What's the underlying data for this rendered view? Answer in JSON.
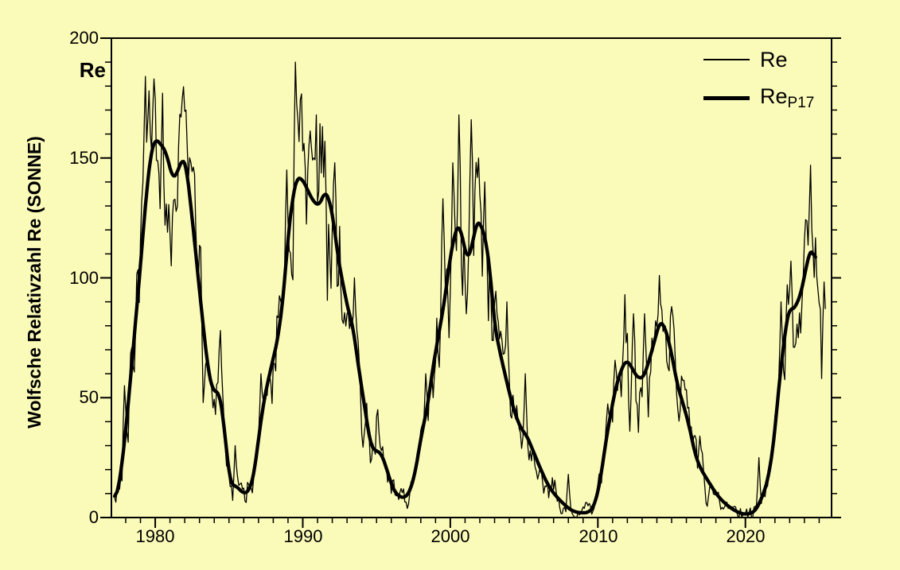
{
  "colors": {
    "background": "#FBFBB9",
    "foreground": "#000000"
  },
  "y_axis": {
    "title": "Wolfsche Relativzahl Re (SONNE)",
    "corner_label": "Re",
    "min": 0,
    "max": 200,
    "minor_step": 10,
    "major_ticks": [
      {
        "value": 0,
        "label": "0"
      },
      {
        "value": 50,
        "label": "50"
      },
      {
        "value": 100,
        "label": "100"
      },
      {
        "value": 150,
        "label": "150"
      },
      {
        "value": 200,
        "label": "200"
      }
    ]
  },
  "x_axis": {
    "min": 1977.03,
    "max": 2025.84,
    "minor_step": 1,
    "major_ticks": [
      {
        "value": 1980,
        "label": "1980"
      },
      {
        "value": 1990,
        "label": "1990"
      },
      {
        "value": 2000,
        "label": "2000"
      },
      {
        "value": 2010,
        "label": "2010"
      },
      {
        "value": 2020,
        "label": "2020"
      }
    ]
  },
  "legend": {
    "items": [
      {
        "label": "Re",
        "subscript": "",
        "style": "thin"
      },
      {
        "label": "Re",
        "subscript": "P17",
        "style": "thick"
      }
    ]
  },
  "chart_data": {
    "type": "line",
    "x_unit": "year",
    "y_unit": "sunspot relative number Re",
    "xlim": [
      1977.03,
      2025.84
    ],
    "ylim": [
      0,
      200
    ],
    "grid": false,
    "legend_position": "top-right",
    "series": [
      {
        "name": "Re",
        "style": "thin",
        "stroke_width": 1.3,
        "synthesis": {
          "base": "Re_P17",
          "start": 1977.25,
          "end": 2025.42,
          "step_months": 1,
          "noise_seed": 20,
          "noise_ar": 0.45,
          "noise_sigma_base": 2.5,
          "noise_sigma_scale": 0.13
        },
        "notable_points": [
          [
            1977.92,
            55
          ],
          [
            1979.33,
            184
          ],
          [
            1979.58,
            178
          ],
          [
            1979.92,
            183
          ],
          [
            1980.5,
            177
          ],
          [
            1980.65,
            122
          ],
          [
            1981.1,
            105
          ],
          [
            1981.85,
            175
          ],
          [
            1982.12,
            170
          ],
          [
            1983.25,
            48
          ],
          [
            1984.4,
            78
          ],
          [
            1985.4,
            30
          ],
          [
            1987.2,
            60
          ],
          [
            1988.9,
            145
          ],
          [
            1989.5,
            190
          ],
          [
            1990.42,
            155
          ],
          [
            1990.9,
            168
          ],
          [
            1991.5,
            157
          ],
          [
            1992.17,
            148
          ],
          [
            1993.5,
            100
          ],
          [
            1995.1,
            45
          ],
          [
            1998.3,
            60
          ],
          [
            1999.5,
            133
          ],
          [
            2000.2,
            148
          ],
          [
            2000.55,
            168
          ],
          [
            2001.05,
            85
          ],
          [
            2001.4,
            166
          ],
          [
            2001.9,
            150
          ],
          [
            2002.3,
            140
          ],
          [
            2003.8,
            90
          ],
          [
            2005.1,
            60
          ],
          [
            2008.0,
            18
          ],
          [
            2011.8,
            93
          ],
          [
            2012.15,
            36
          ],
          [
            2012.4,
            85
          ],
          [
            2013.2,
            85
          ],
          [
            2013.45,
            42
          ],
          [
            2014.2,
            101
          ],
          [
            2015.0,
            88
          ],
          [
            2016.9,
            34
          ],
          [
            2020.9,
            25
          ],
          [
            2022.4,
            90
          ],
          [
            2023.05,
            107
          ],
          [
            2023.6,
            75
          ],
          [
            2024.42,
            147
          ],
          [
            2024.9,
            95
          ],
          [
            2025.2,
            58
          ],
          [
            2025.42,
            87
          ]
        ]
      },
      {
        "name": "Re_P17",
        "style": "thick",
        "stroke_width": 4.3,
        "points": [
          [
            1977.25,
            7
          ],
          [
            1977.6,
            15
          ],
          [
            1978.0,
            36
          ],
          [
            1978.5,
            70
          ],
          [
            1979.0,
            105
          ],
          [
            1979.35,
            132
          ],
          [
            1979.7,
            152
          ],
          [
            1980.0,
            158
          ],
          [
            1980.35,
            156
          ],
          [
            1980.7,
            153
          ],
          [
            1981.0,
            146
          ],
          [
            1981.2,
            141
          ],
          [
            1981.5,
            144
          ],
          [
            1981.85,
            150
          ],
          [
            1982.1,
            147
          ],
          [
            1982.4,
            131
          ],
          [
            1982.7,
            113
          ],
          [
            1983.0,
            95
          ],
          [
            1983.3,
            77
          ],
          [
            1983.6,
            61
          ],
          [
            1983.9,
            53
          ],
          [
            1984.35,
            52
          ],
          [
            1984.6,
            42
          ],
          [
            1984.9,
            24
          ],
          [
            1985.1,
            14
          ],
          [
            1985.5,
            13
          ],
          [
            1986.0,
            10
          ],
          [
            1986.35,
            11
          ],
          [
            1986.7,
            18
          ],
          [
            1987.0,
            33
          ],
          [
            1987.4,
            50
          ],
          [
            1987.9,
            64
          ],
          [
            1988.3,
            74
          ],
          [
            1988.7,
            93
          ],
          [
            1989.0,
            117
          ],
          [
            1989.3,
            133
          ],
          [
            1989.6,
            142
          ],
          [
            1990.0,
            141
          ],
          [
            1990.3,
            137
          ],
          [
            1990.7,
            132
          ],
          [
            1991.1,
            130
          ],
          [
            1991.5,
            136
          ],
          [
            1991.8,
            133
          ],
          [
            1992.1,
            123
          ],
          [
            1992.4,
            108
          ],
          [
            1992.8,
            95
          ],
          [
            1993.1,
            86
          ],
          [
            1993.4,
            80
          ],
          [
            1993.7,
            66
          ],
          [
            1994.0,
            54
          ],
          [
            1994.3,
            42
          ],
          [
            1994.6,
            30
          ],
          [
            1994.9,
            28
          ],
          [
            1995.3,
            27
          ],
          [
            1995.6,
            22
          ],
          [
            1996.0,
            14
          ],
          [
            1996.3,
            10
          ],
          [
            1996.8,
            8
          ],
          [
            1997.2,
            10
          ],
          [
            1997.6,
            18
          ],
          [
            1998.0,
            33
          ],
          [
            1998.5,
            48
          ],
          [
            1998.8,
            62
          ],
          [
            1999.2,
            76
          ],
          [
            1999.6,
            90
          ],
          [
            2000.0,
            109
          ],
          [
            2000.4,
            121
          ],
          [
            2000.6,
            122
          ],
          [
            2000.9,
            115
          ],
          [
            2001.15,
            107
          ],
          [
            2001.5,
            114
          ],
          [
            2001.8,
            124
          ],
          [
            2002.1,
            122
          ],
          [
            2002.4,
            116
          ],
          [
            2002.7,
            103
          ],
          [
            2003.0,
            80
          ],
          [
            2003.4,
            68
          ],
          [
            2003.7,
            60
          ],
          [
            2004.0,
            52
          ],
          [
            2004.4,
            43
          ],
          [
            2004.8,
            37
          ],
          [
            2005.2,
            34
          ],
          [
            2005.6,
            28
          ],
          [
            2006.0,
            22
          ],
          [
            2006.5,
            15
          ],
          [
            2006.9,
            11
          ],
          [
            2007.3,
            8
          ],
          [
            2007.8,
            5
          ],
          [
            2008.2,
            3
          ],
          [
            2008.7,
            2
          ],
          [
            2009.3,
            2
          ],
          [
            2009.7,
            4
          ],
          [
            2010.1,
            13
          ],
          [
            2010.65,
            36
          ],
          [
            2011.2,
            54
          ],
          [
            2011.6,
            62
          ],
          [
            2011.9,
            65.5
          ],
          [
            2012.2,
            64
          ],
          [
            2012.5,
            60
          ],
          [
            2012.8,
            58
          ],
          [
            2013.1,
            58.5
          ],
          [
            2013.5,
            66
          ],
          [
            2013.9,
            75
          ],
          [
            2014.2,
            82
          ],
          [
            2014.5,
            80
          ],
          [
            2014.8,
            74
          ],
          [
            2015.1,
            65
          ],
          [
            2015.4,
            55
          ],
          [
            2015.8,
            47
          ],
          [
            2016.2,
            38
          ],
          [
            2016.6,
            26
          ],
          [
            2017.0,
            20
          ],
          [
            2017.4,
            16
          ],
          [
            2017.8,
            12
          ],
          [
            2018.2,
            8.5
          ],
          [
            2018.6,
            6
          ],
          [
            2019.0,
            4
          ],
          [
            2019.4,
            2.5
          ],
          [
            2019.8,
            1.5
          ],
          [
            2020.3,
            1.5
          ],
          [
            2020.7,
            3
          ],
          [
            2021.1,
            8
          ],
          [
            2021.5,
            15
          ],
          [
            2021.9,
            30
          ],
          [
            2022.2,
            50
          ],
          [
            2022.5,
            68
          ],
          [
            2022.8,
            82
          ],
          [
            2023.0,
            88
          ],
          [
            2023.2,
            86
          ],
          [
            2023.45,
            89
          ],
          [
            2023.7,
            92
          ],
          [
            2023.95,
            99
          ],
          [
            2024.2,
            107
          ],
          [
            2024.45,
            112.5
          ],
          [
            2024.6,
            111
          ],
          [
            2024.75,
            106
          ]
        ]
      }
    ]
  }
}
